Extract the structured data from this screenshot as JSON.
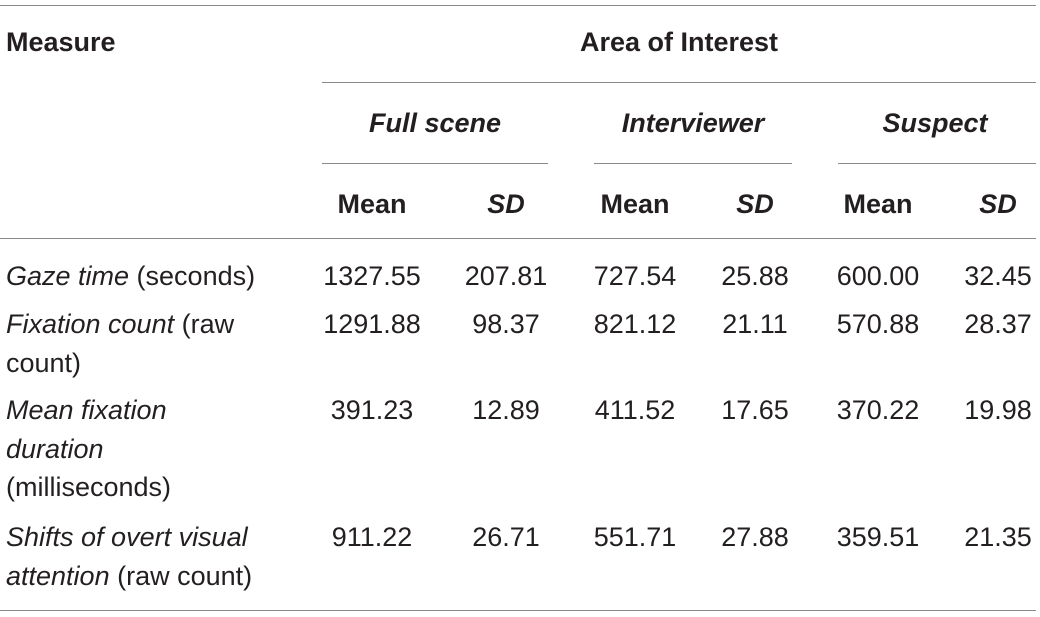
{
  "table": {
    "measure_header": "Measure",
    "group_header": "Area of Interest",
    "areas": [
      {
        "label": "Full scene"
      },
      {
        "label": "Interviewer"
      },
      {
        "label": "Suspect"
      }
    ],
    "stat_headers": {
      "mean": "Mean",
      "sd": "SD"
    },
    "rows": [
      {
        "name_italic": "Gaze time",
        "name_unit": " (seconds)",
        "values": [
          "1327.55",
          "207.81",
          "727.54",
          "25.88",
          "600.00",
          "32.45"
        ]
      },
      {
        "name_italic": "Fixation count",
        "name_unit": " (raw count)",
        "values": [
          "1291.88",
          "98.37",
          "821.12",
          "21.11",
          "570.88",
          "28.37"
        ]
      },
      {
        "name_italic": "Mean fixation duration",
        "name_unit": " (milliseconds)",
        "values": [
          "391.23",
          "12.89",
          "411.52",
          "17.65",
          "370.22",
          "19.98"
        ]
      },
      {
        "name_italic": "Shifts of overt visual attention",
        "name_unit": " (raw count)",
        "values": [
          "911.22",
          "26.71",
          "551.71",
          "27.88",
          "359.51",
          "21.35"
        ]
      }
    ]
  }
}
